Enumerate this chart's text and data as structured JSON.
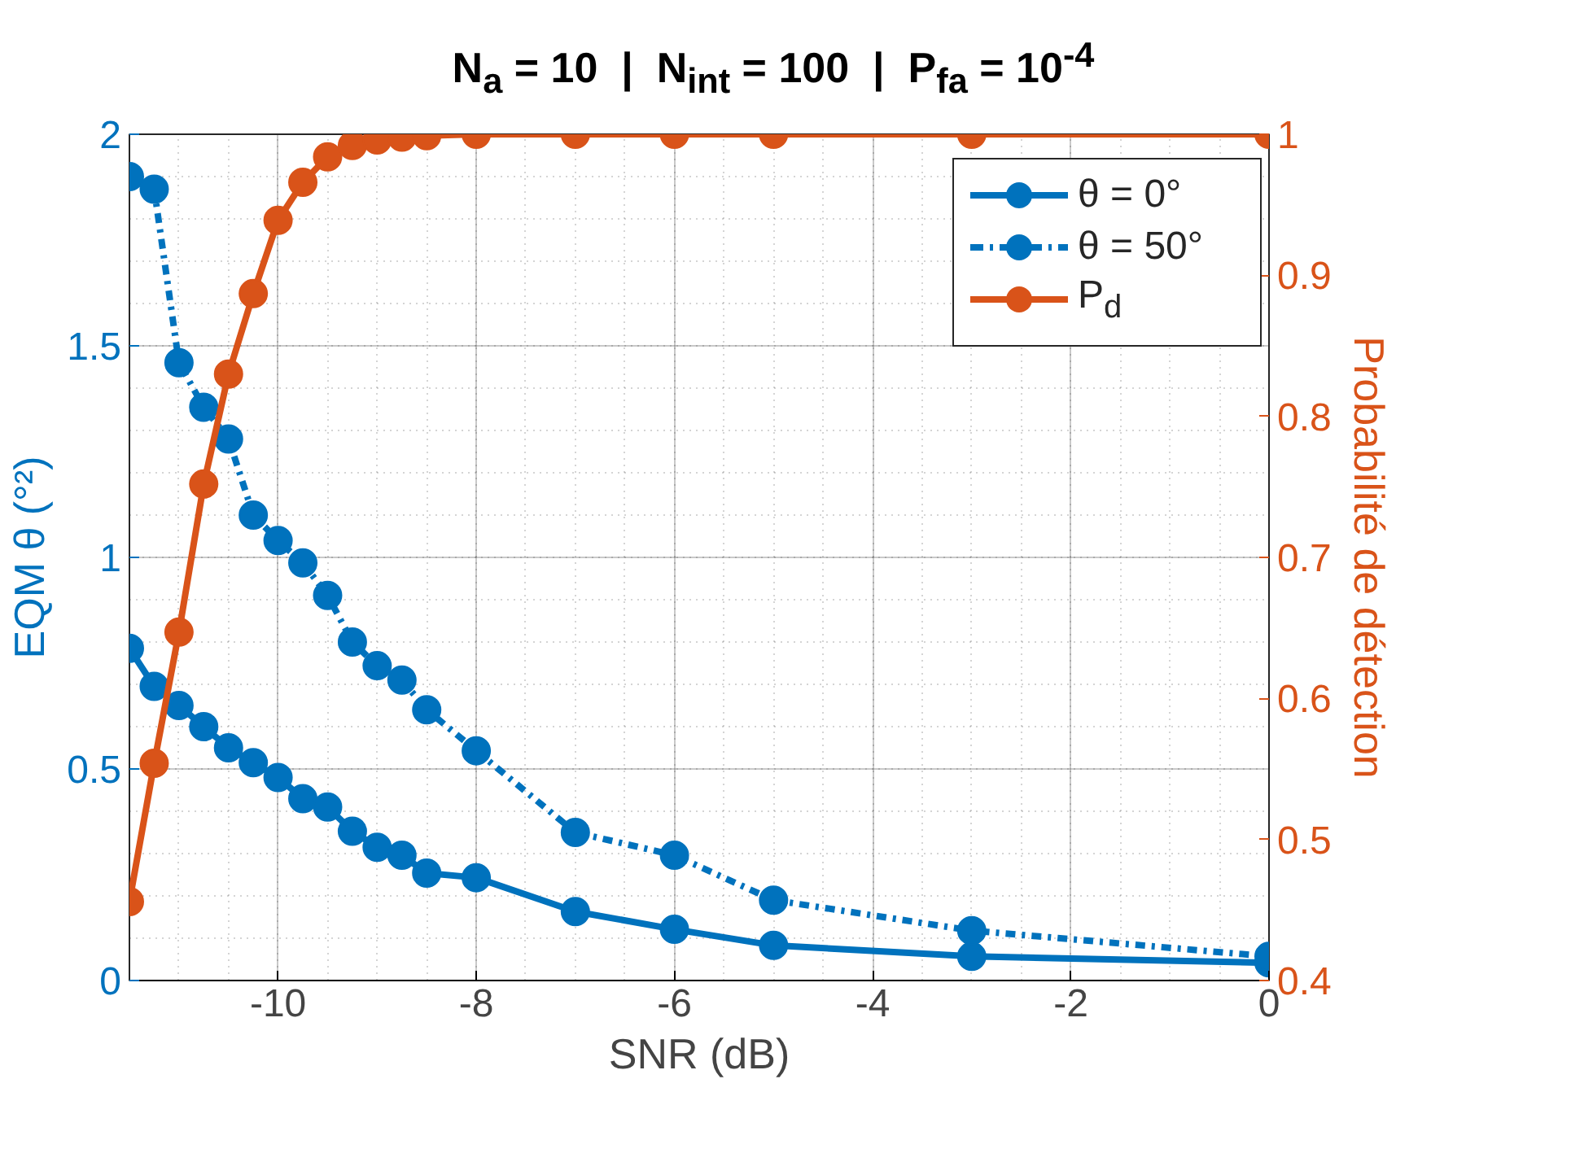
{
  "chart_data": {
    "type": "line",
    "title": "N$_{a}$ = 10  |  N$_{int}$ = 100  |  P$_{fa}$ = 10$^{-4}$",
    "xlabel": "SNR (dB)",
    "ylabel": "EQM θ (°²)",
    "y2label": "Probabilité de détection",
    "x": [
      -11.5,
      -11.25,
      -11,
      -10.75,
      -10.5,
      -10.25,
      -10,
      -9.75,
      -9.5,
      -9.25,
      -9,
      -8.75,
      -8.5,
      -8,
      -7,
      -6,
      -5,
      -3,
      0
    ],
    "series": [
      {
        "name": "θ = 0°",
        "color": "#0072bd",
        "line_style": "solid",
        "values": [
          0.785,
          0.695,
          0.65,
          0.6,
          0.55,
          0.515,
          0.48,
          0.43,
          0.41,
          0.353,
          0.315,
          0.296,
          0.254,
          0.243,
          0.163,
          0.121,
          0.083,
          0.057,
          0.042
        ]
      },
      {
        "name": "θ = 50°",
        "color": "#0072bd",
        "line_style": "dashdot",
        "values": [
          1.9,
          1.87,
          1.46,
          1.355,
          1.28,
          1.1,
          1.04,
          0.987,
          0.91,
          0.8,
          0.744,
          0.71,
          0.64,
          0.543,
          0.35,
          0.296,
          0.19,
          0.118,
          0.057
        ]
      },
      {
        "name": "P$_{d}$",
        "color": "#d95319",
        "line_style": "solid",
        "axis": "y2",
        "values": [
          0.456,
          0.554,
          0.647,
          0.752,
          0.83,
          0.887,
          0.939,
          0.966,
          0.984,
          0.992,
          0.996,
          0.998,
          0.999,
          1,
          1,
          1,
          1,
          1,
          1
        ]
      }
    ],
    "xlim": [
      -11.5,
      0
    ],
    "xticks": [
      -10,
      -8,
      -6,
      -4,
      -2,
      0
    ],
    "ylim": [
      0,
      2
    ],
    "yticks": [
      0,
      0.5,
      1,
      1.5,
      2
    ],
    "y2lim": [
      0.4,
      1
    ],
    "y2ticks": [
      0.4,
      0.5,
      0.6,
      0.7,
      0.8,
      0.9,
      1
    ],
    "grid": true,
    "legend": "top right",
    "marker": "circle"
  }
}
